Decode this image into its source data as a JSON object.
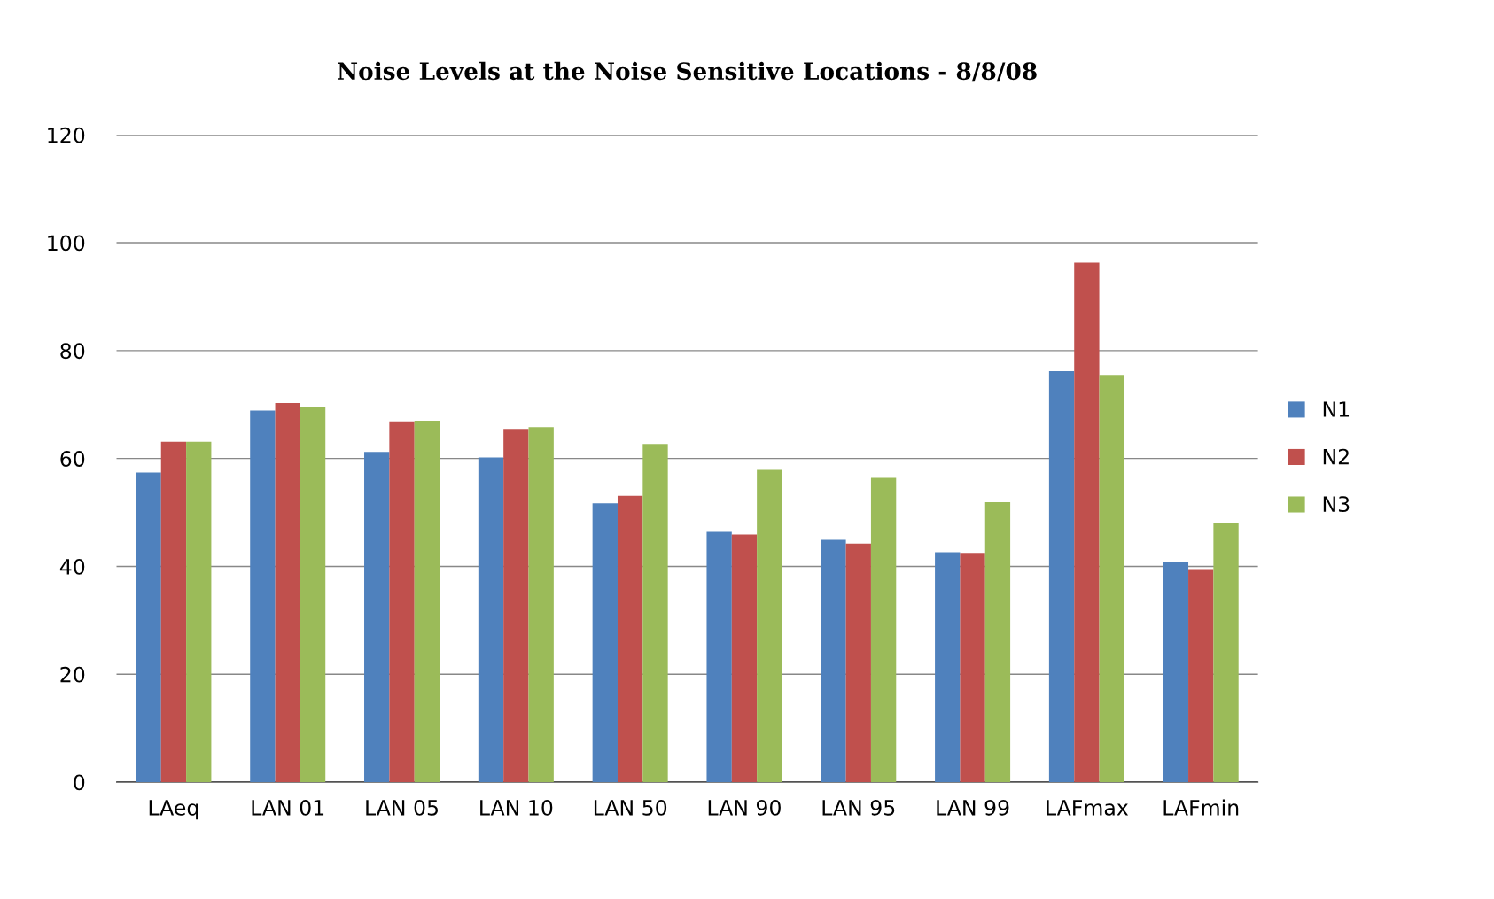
{
  "chart_data": {
    "type": "bar",
    "title": "Noise Levels at the Noise Sensitive Locations - 8/8/08",
    "categories": [
      "LAeq",
      "LAN 01",
      "LAN 05",
      "LAN 10",
      "LAN 50",
      "LAN 90",
      "LAN 95",
      "LAN 99",
      "LAFmax",
      "LAFmin"
    ],
    "series": [
      {
        "name": "N1",
        "color": "#4f81bd",
        "values": [
          57.4,
          68.9,
          61.2,
          60.2,
          51.7,
          46.4,
          44.9,
          42.6,
          76.2,
          40.9
        ]
      },
      {
        "name": "N2",
        "color": "#c0504d",
        "values": [
          63.1,
          70.3,
          66.9,
          65.5,
          53.1,
          45.9,
          44.2,
          42.5,
          96.3,
          39.5
        ]
      },
      {
        "name": "N3",
        "color": "#9bbb59",
        "values": [
          63.1,
          69.6,
          67.0,
          65.8,
          62.7,
          57.9,
          56.4,
          51.9,
          75.5,
          48.0
        ]
      }
    ],
    "ylim": [
      0,
      120
    ],
    "yticks": [
      0,
      20,
      40,
      60,
      80,
      100,
      120
    ],
    "grid": "y",
    "legend": "right"
  }
}
